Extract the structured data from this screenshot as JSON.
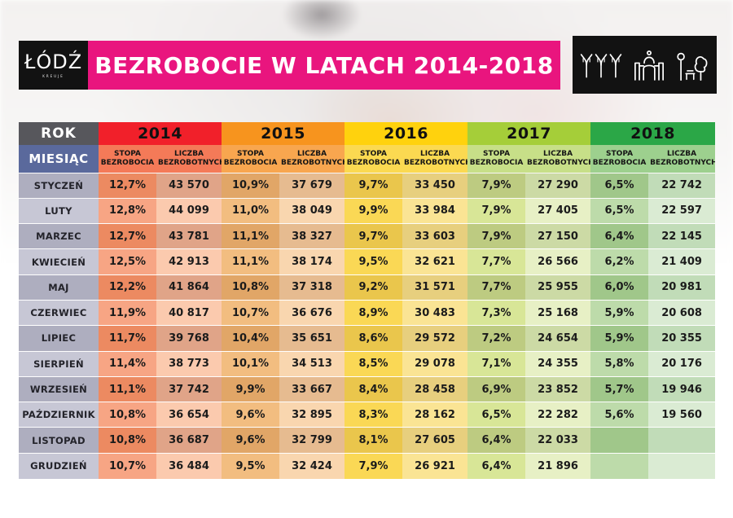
{
  "colors": {
    "brand_pink": "#E9157E",
    "box_black": "#121212",
    "rok_bg": "#57575C",
    "miesiac_bg": "#5A699C",
    "y2014": "#F1202A",
    "y2015": "#F7941E",
    "y2016": "#FFD20D",
    "y2017": "#A5CE39",
    "y2018": "#2BA747",
    "sub2014": "#F47A58",
    "sub2015": "#F8A64F",
    "sub2016": "#FBD951",
    "sub2017": "#C7DF88",
    "sub2018": "#9DD08E"
  },
  "header": {
    "logo_text": "ŁÓDŹ",
    "logo_sub": "KREUJE",
    "title": "BEZROBOCIE W LATACH 2014-2018",
    "icons": [
      "arcade-columns-icon",
      "palace-gate-icon",
      "park-icon"
    ]
  },
  "table": {
    "rok_label": "ROK",
    "miesiac_label": "MIESIĄC",
    "col_stopa": "STOPA BEZROBOCIA",
    "col_liczba": "LICZBA BEZROBOTNYCH",
    "years": [
      {
        "label": "2014"
      },
      {
        "label": "2015"
      },
      {
        "label": "2016"
      },
      {
        "label": "2017"
      },
      {
        "label": "2018"
      }
    ],
    "rows": [
      {
        "month": "STYCZEŃ",
        "cells": [
          "12,7%",
          "43 570",
          "10,9%",
          "37 679",
          "9,7%",
          "33 450",
          "7,9%",
          "27 290",
          "6,5%",
          "22 742"
        ]
      },
      {
        "month": "LUTY",
        "cells": [
          "12,8%",
          "44 099",
          "11,0%",
          "38 049",
          "9,9%",
          "33 984",
          "7,9%",
          "27 405",
          "6,5%",
          "22 597"
        ]
      },
      {
        "month": "MARZEC",
        "cells": [
          "12,7%",
          "43 781",
          "11,1%",
          "38 327",
          "9,7%",
          "33 603",
          "7,9%",
          "27 150",
          "6,4%",
          "22 145"
        ]
      },
      {
        "month": "KWIECIEŃ",
        "cells": [
          "12,5%",
          "42 913",
          "11,1%",
          "38 174",
          "9,5%",
          "32 621",
          "7,7%",
          "26 566",
          "6,2%",
          "21 409"
        ]
      },
      {
        "month": "MAJ",
        "cells": [
          "12,2%",
          "41 864",
          "10,8%",
          "37 318",
          "9,2%",
          "31 571",
          "7,7%",
          "25 955",
          "6,0%",
          "20 981"
        ]
      },
      {
        "month": "CZERWIEC",
        "cells": [
          "11,9%",
          "40 817",
          "10,7%",
          "36 676",
          "8,9%",
          "30 483",
          "7,3%",
          "25 168",
          "5,9%",
          "20 608"
        ]
      },
      {
        "month": "LIPIEC",
        "cells": [
          "11,7%",
          "39 768",
          "10,4%",
          "35 651",
          "8,6%",
          "29 572",
          "7,2%",
          "24 654",
          "5,9%",
          "20 355"
        ]
      },
      {
        "month": "SIERPIEŃ",
        "cells": [
          "11,4%",
          "38 773",
          "10,1%",
          "34 513",
          "8,5%",
          "29 078",
          "7,1%",
          "24 355",
          "5,8%",
          "20 176"
        ]
      },
      {
        "month": "WRZESIEŃ",
        "cells": [
          "11,1%",
          "37 742",
          "9,9%",
          "33 667",
          "8,4%",
          "28 458",
          "6,9%",
          "23 852",
          "5,7%",
          "19 946"
        ]
      },
      {
        "month": "PAŹDZIERNIK",
        "cells": [
          "10,8%",
          "36 654",
          "9,6%",
          "32 895",
          "8,3%",
          "28 162",
          "6,5%",
          "22 282",
          "5,6%",
          "19 560"
        ]
      },
      {
        "month": "LISTOPAD",
        "cells": [
          "10,8%",
          "36 687",
          "9,6%",
          "32 799",
          "8,1%",
          "27 605",
          "6,4%",
          "22 033",
          "",
          ""
        ]
      },
      {
        "month": "GRUDZIEŃ",
        "cells": [
          "10,7%",
          "36 484",
          "9,5%",
          "32 424",
          "7,9%",
          "26 921",
          "6,4%",
          "21 896",
          "",
          ""
        ]
      }
    ]
  },
  "chart_data": {
    "type": "table",
    "title": "BEZROBOCIE W LATACH 2014-2018",
    "row_header": "MIESIĄC",
    "column_groups": [
      "2014",
      "2015",
      "2016",
      "2017",
      "2018"
    ],
    "subcolumns": [
      "STOPA BEZROBOCIA",
      "LICZBA BEZROBOTNYCH"
    ],
    "months": [
      "STYCZEŃ",
      "LUTY",
      "MARZEC",
      "KWIECIEŃ",
      "MAJ",
      "CZERWIEC",
      "LIPIEC",
      "SIERPIEŃ",
      "WRZESIEŃ",
      "PAŹDZIERNIK",
      "LISTOPAD",
      "GRUDZIEŃ"
    ],
    "series": [
      {
        "year": "2014",
        "stopa_bezrobocia_pct": [
          12.7,
          12.8,
          12.7,
          12.5,
          12.2,
          11.9,
          11.7,
          11.4,
          11.1,
          10.8,
          10.8,
          10.7
        ],
        "liczba_bezrobotnych": [
          43570,
          44099,
          43781,
          42913,
          41864,
          40817,
          39768,
          38773,
          37742,
          36654,
          36687,
          36484
        ]
      },
      {
        "year": "2015",
        "stopa_bezrobocia_pct": [
          10.9,
          11.0,
          11.1,
          11.1,
          10.8,
          10.7,
          10.4,
          10.1,
          9.9,
          9.6,
          9.6,
          9.5
        ],
        "liczba_bezrobotnych": [
          37679,
          38049,
          38327,
          38174,
          37318,
          36676,
          35651,
          34513,
          33667,
          32895,
          32799,
          32424
        ]
      },
      {
        "year": "2016",
        "stopa_bezrobocia_pct": [
          9.7,
          9.9,
          9.7,
          9.5,
          9.2,
          8.9,
          8.6,
          8.5,
          8.4,
          8.3,
          8.1,
          7.9
        ],
        "liczba_bezrobotnych": [
          33450,
          33984,
          33603,
          32621,
          31571,
          30483,
          29572,
          29078,
          28458,
          28162,
          27605,
          26921
        ]
      },
      {
        "year": "2017",
        "stopa_bezrobocia_pct": [
          7.9,
          7.9,
          7.9,
          7.7,
          7.7,
          7.3,
          7.2,
          7.1,
          6.9,
          6.5,
          6.4,
          6.4
        ],
        "liczba_bezrobotnych": [
          27290,
          27405,
          27150,
          26566,
          25955,
          25168,
          24654,
          24355,
          23852,
          22282,
          22033,
          21896
        ]
      },
      {
        "year": "2018",
        "stopa_bezrobocia_pct": [
          6.5,
          6.5,
          6.4,
          6.2,
          6.0,
          5.9,
          5.9,
          5.8,
          5.7,
          5.6,
          null,
          null
        ],
        "liczba_bezrobotnych": [
          22742,
          22597,
          22145,
          21409,
          20981,
          20608,
          20355,
          20176,
          19946,
          19560,
          null,
          null
        ]
      }
    ]
  }
}
